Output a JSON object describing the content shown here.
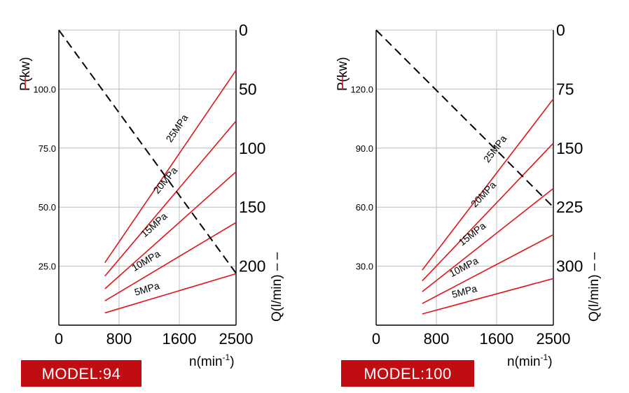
{
  "chart_data": [
    {
      "type": "line",
      "model_label": "MODEL:94",
      "colors": {
        "power": "#e0141b",
        "flow": "#000000",
        "badge": "#c00d14"
      },
      "left_axis": {
        "title": "P(kw)",
        "ticks": [
          "25.0",
          "50.0",
          "75.0",
          "100.0"
        ],
        "values": [
          25,
          50,
          75,
          100
        ],
        "range": [
          0,
          125
        ]
      },
      "right_axis": {
        "title": "Q(l/min)",
        "ticks": [
          "0",
          "50",
          "100",
          "150",
          "200"
        ],
        "values": [
          0,
          50,
          100,
          150,
          200
        ],
        "range": [
          0,
          250
        ],
        "inverted": true
      },
      "x_axis": {
        "title_main": "n(min",
        "title_sup": "-1",
        "title_end": ")",
        "ticks": [
          "0",
          "800",
          "1600",
          "2500"
        ],
        "values": [
          0,
          800,
          1600,
          2500
        ],
        "range": [
          0,
          2500
        ]
      },
      "series": [
        {
          "name": "25MPa",
          "x": [
            650,
            2500
          ],
          "y": [
            26.5,
            108
          ]
        },
        {
          "name": "20MPa",
          "x": [
            650,
            2500
          ],
          "y": [
            20.8,
            86.5
          ]
        },
        {
          "name": "15MPa",
          "x": [
            650,
            2500
          ],
          "y": [
            15.4,
            65
          ]
        },
        {
          "name": "10MPa",
          "x": [
            650,
            2500
          ],
          "y": [
            10.3,
            43.5
          ]
        },
        {
          "name": "5MPa",
          "x": [
            650,
            2500
          ],
          "y": [
            5.2,
            21.8
          ]
        }
      ],
      "flow_line": {
        "x": [
          0,
          2500
        ],
        "y": [
          0,
          206
        ]
      },
      "grid": true
    },
    {
      "type": "line",
      "model_label": "MODEL:100",
      "colors": {
        "power": "#e0141b",
        "flow": "#000000",
        "badge": "#c00d14"
      },
      "left_axis": {
        "title": "P(kw)",
        "ticks": [
          "30.0",
          "60.0",
          "90.0",
          "120.0"
        ],
        "values": [
          30,
          60,
          90,
          120
        ],
        "range": [
          0,
          150
        ]
      },
      "right_axis": {
        "title": "Q(l/min)",
        "ticks": [
          "0",
          "75",
          "150",
          "225",
          "300"
        ],
        "values": [
          0,
          75,
          150,
          225,
          300
        ],
        "range": [
          0,
          375
        ],
        "inverted": true
      },
      "x_axis": {
        "title_main": "n(min",
        "title_sup": "-1",
        "title_end": ")",
        "ticks": [
          "0",
          "800",
          "1600",
          "2500"
        ],
        "values": [
          0,
          800,
          1600,
          2500
        ],
        "range": [
          0,
          2500
        ]
      },
      "series": [
        {
          "name": "25MPa",
          "x": [
            650,
            2500
          ],
          "y": [
            28,
            115
          ]
        },
        {
          "name": "20MPa",
          "x": [
            650,
            2500
          ],
          "y": [
            22.5,
            92.5
          ]
        },
        {
          "name": "15MPa",
          "x": [
            650,
            2500
          ],
          "y": [
            17,
            69.5
          ]
        },
        {
          "name": "10MPa",
          "x": [
            650,
            2500
          ],
          "y": [
            11,
            46
          ]
        },
        {
          "name": "5MPa",
          "x": [
            650,
            2500
          ],
          "y": [
            5.7,
            23.7
          ]
        }
      ],
      "flow_line": {
        "x": [
          0,
          2500
        ],
        "y": [
          0,
          225
        ]
      },
      "grid": true
    }
  ]
}
